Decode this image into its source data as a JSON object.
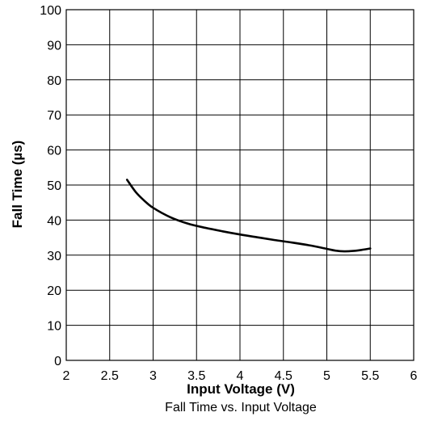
{
  "chart_data": {
    "type": "line",
    "title": "",
    "caption": "Fall Time vs. Input Voltage",
    "xlabel": "Input Voltage (V)",
    "ylabel": "Fall Time (µs)",
    "xlim": [
      2,
      6
    ],
    "ylim": [
      0,
      100
    ],
    "x_ticks": [
      "2",
      "2.5",
      "3",
      "3.5",
      "4",
      "4.5",
      "5",
      "5.5",
      "6"
    ],
    "y_ticks": [
      "0",
      "10",
      "20",
      "30",
      "40",
      "50",
      "60",
      "70",
      "80",
      "90",
      "100"
    ],
    "grid": true,
    "legend": "none",
    "line_color": "#000000",
    "series": [
      {
        "x": [
          2.7,
          2.8,
          2.9,
          3.0,
          3.2,
          3.4,
          3.6,
          3.8,
          4.0,
          4.2,
          4.4,
          4.6,
          4.8,
          5.0,
          5.1,
          5.2,
          5.3,
          5.4,
          5.5
        ],
        "y": [
          51.5,
          48.0,
          45.5,
          43.5,
          40.8,
          39.0,
          37.8,
          36.8,
          35.9,
          35.1,
          34.3,
          33.6,
          32.8,
          31.8,
          31.3,
          31.1,
          31.2,
          31.5,
          31.9
        ]
      }
    ]
  }
}
